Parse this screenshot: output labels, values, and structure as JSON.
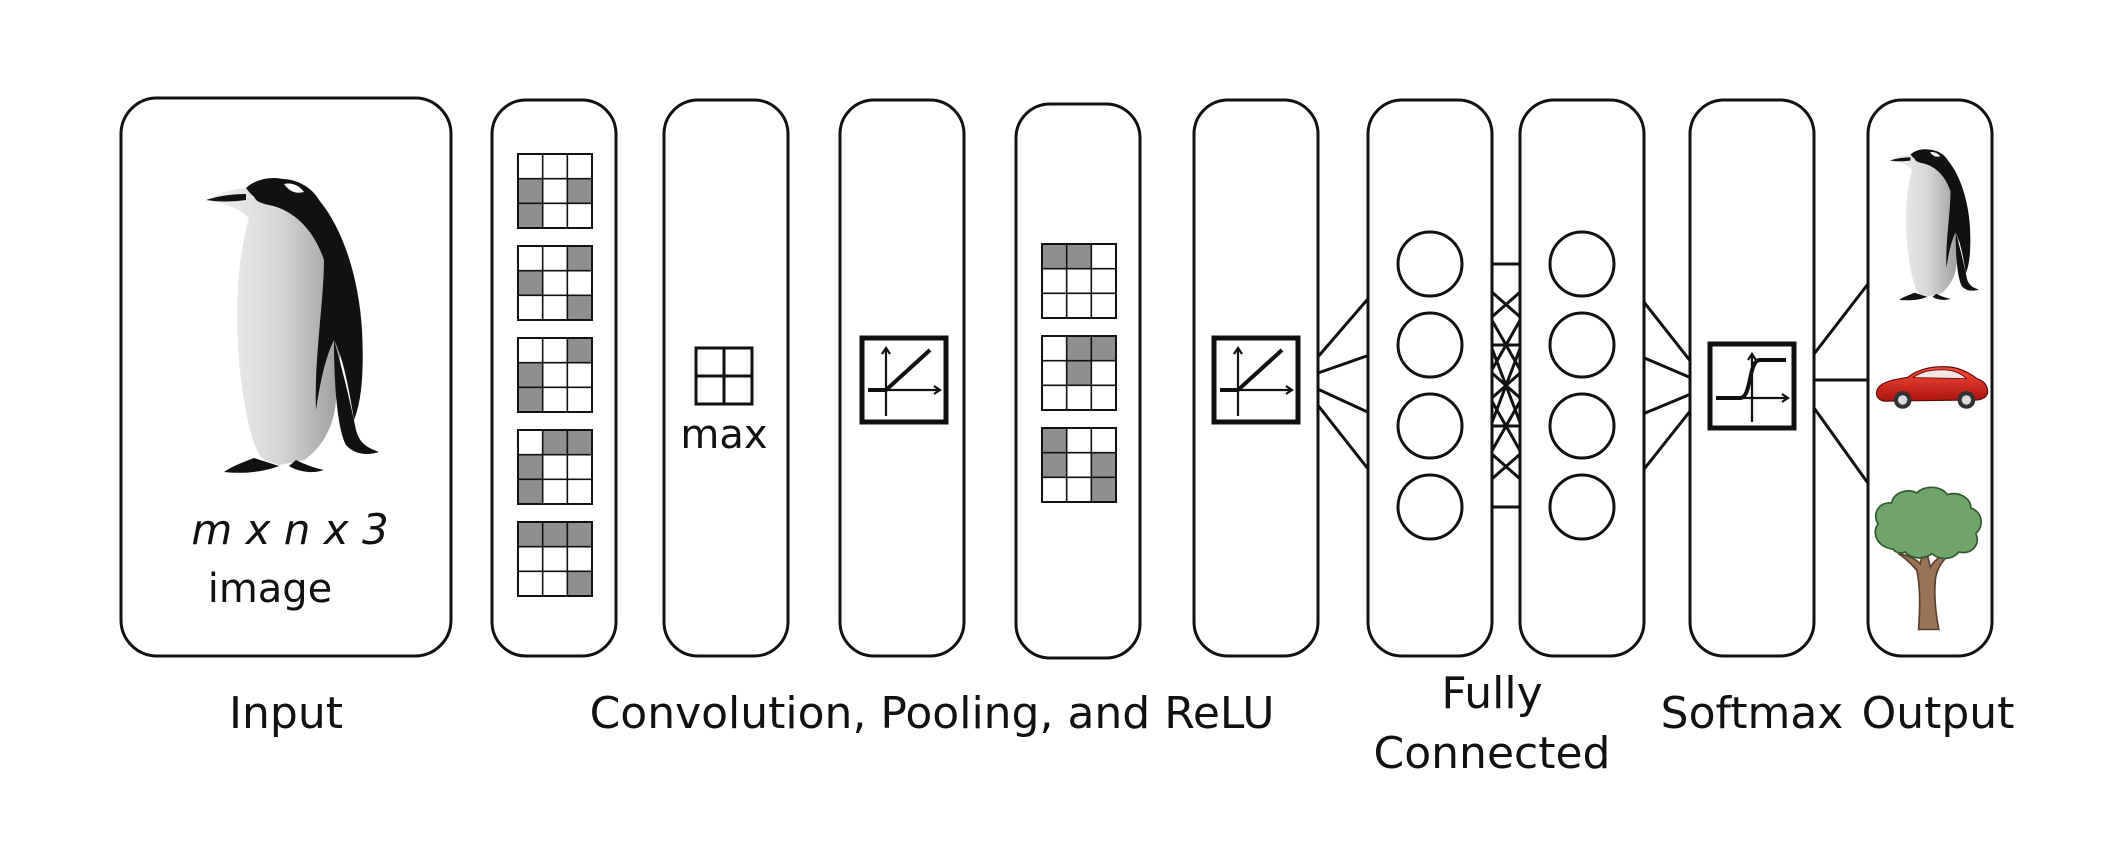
{
  "input": {
    "dimensions_text": "m x n x 3",
    "image_text": "image",
    "label": "Input"
  },
  "stages": {
    "conv_pool_relu_label": "Convolution, Pooling, and ReLU",
    "fully_connected_label_line1": "Fully",
    "fully_connected_label_line2": "Connected",
    "softmax_label": "Softmax",
    "output_label": "Output"
  },
  "pooling": {
    "operation_text": "max"
  },
  "colors": {
    "stroke": "#111111",
    "shaded_cell": "#8f8f8f",
    "penguin_black": "#111111",
    "car_red": "#d7261f",
    "tree_green": "#6fa56a",
    "tree_trunk": "#9a7356"
  },
  "icons": {
    "input_image": "penguin-icon",
    "output_classes": [
      "penguin-icon",
      "car-icon",
      "tree-icon"
    ]
  },
  "network": {
    "fc_layer_1_neurons": 4,
    "fc_layer_2_neurons": 4,
    "output_classes": 3
  }
}
